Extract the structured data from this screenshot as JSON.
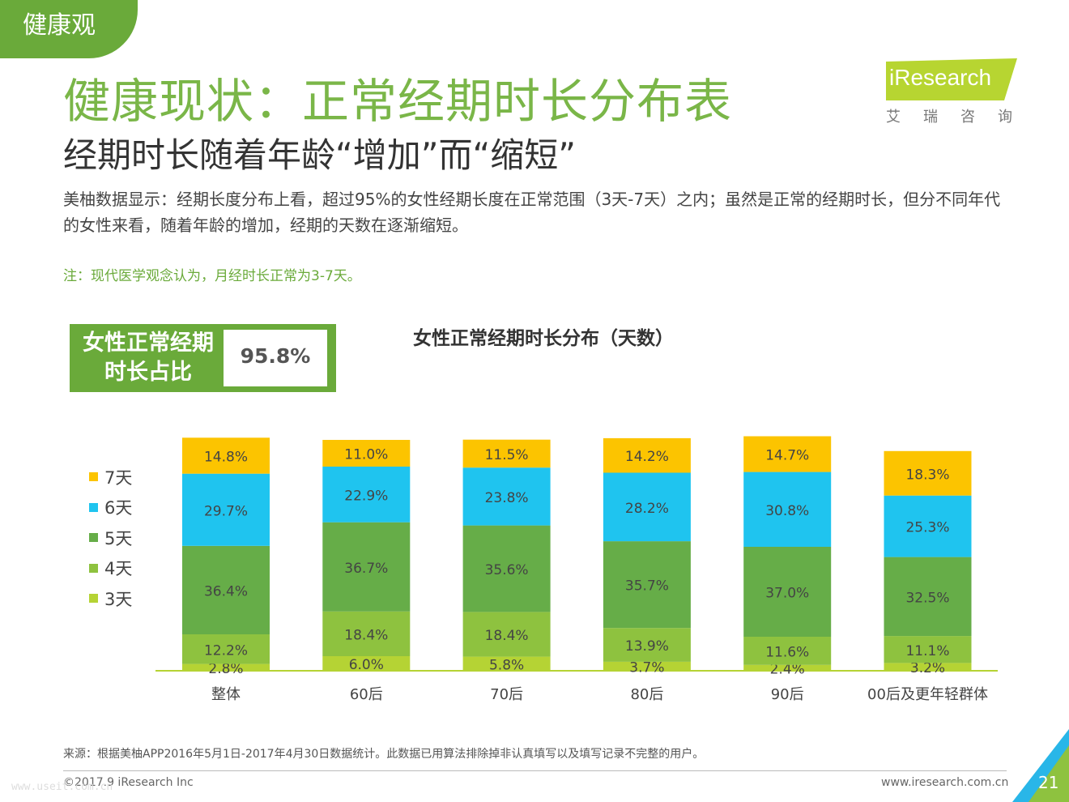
{
  "header": {
    "tag": "健康观",
    "title": "健康现状：正常经期时长分布表",
    "subtitle": "经期时长随着年龄“增加”而“缩短”",
    "description": "美柚数据显示：经期长度分布上看，超过95%的女性经期长度在正常范围（3天-7天）之内；虽然是正常的经期时长，但分不同年代的女性来看，随着年龄的增加，经期的天数在逐渐缩短。",
    "note": "注：现代医学观念认为，月经时长正常为3-7天。"
  },
  "logo": {
    "name": "iResearch",
    "cn": "艾瑞咨询"
  },
  "kpi": {
    "label_line1": "女性正常经期",
    "label_line2": "时长占比",
    "value": "95.8%"
  },
  "colors": {
    "brand_green": "#6aaa3a",
    "title_green": "#7ab648",
    "d3": "#b5d334",
    "d4": "#8ec23f",
    "d5": "#66ad48",
    "d6": "#1fc4ef",
    "d7": "#fcc400"
  },
  "chart_data": {
    "type": "bar",
    "stacked": true,
    "title": "女性正常经期时长分布（天数）",
    "categories": [
      "整体",
      "60后",
      "70后",
      "80后",
      "90后",
      "00后及更年轻群体"
    ],
    "series": [
      {
        "name": "3天",
        "values": [
          2.8,
          6.0,
          5.8,
          3.7,
          2.4,
          3.2
        ],
        "color": "#b5d334"
      },
      {
        "name": "4天",
        "values": [
          12.2,
          18.4,
          18.4,
          13.9,
          11.6,
          11.1
        ],
        "color": "#8ec23f"
      },
      {
        "name": "5天",
        "values": [
          36.4,
          36.7,
          35.6,
          35.7,
          37.0,
          32.5
        ],
        "color": "#66ad48"
      },
      {
        "name": "6天",
        "values": [
          29.7,
          22.9,
          23.8,
          28.2,
          30.8,
          25.3
        ],
        "color": "#1fc4ef"
      },
      {
        "name": "7天",
        "values": [
          14.8,
          11.0,
          11.5,
          14.2,
          14.7,
          18.3
        ],
        "color": "#fcc400"
      }
    ],
    "legend_position": "left",
    "grid": false
  },
  "footer": {
    "source": "来源：根据美柚APP2016年5月1日-2017年4月30日数据统计。此数据已用算法排除掉非认真填写以及填写记录不完整的用户。",
    "copyright": "©2017.9 iResearch Inc",
    "website": "www.iresearch.com.cn",
    "page_number": "21",
    "watermark": "www.useit.com.cn"
  }
}
